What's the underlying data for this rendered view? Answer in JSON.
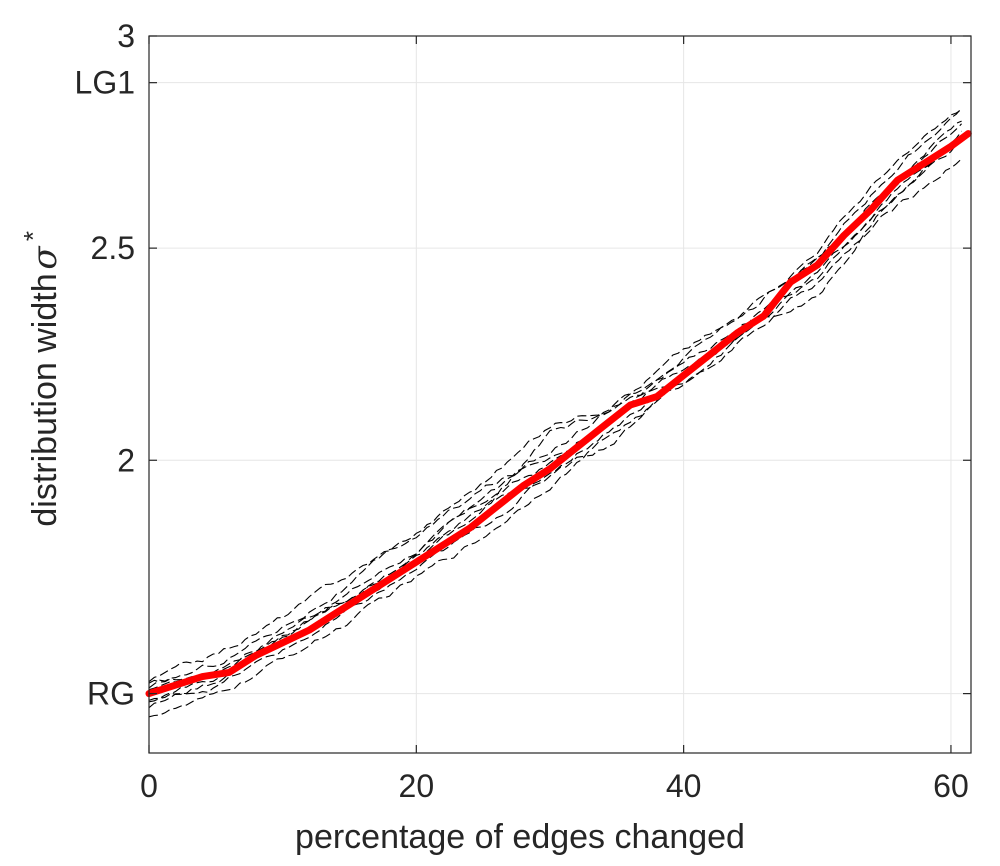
{
  "chart_data": {
    "type": "line",
    "title": "",
    "xlabel": "percentage of edges changed",
    "ylabel": "distribution width",
    "ylabel_symbol": "σ",
    "ylabel_superscript": "*",
    "xlim": [
      0,
      61.5
    ],
    "ylim": [
      1.31,
      3.0
    ],
    "x_ticks": [
      {
        "value": 0,
        "label": "0"
      },
      {
        "value": 20,
        "label": "20"
      },
      {
        "value": 40,
        "label": "40"
      },
      {
        "value": 60,
        "label": "60"
      }
    ],
    "y_ticks": [
      {
        "value": 1.45,
        "label": "RG"
      },
      {
        "value": 2.0,
        "label": "2"
      },
      {
        "value": 2.5,
        "label": "2.5"
      },
      {
        "value": 2.89,
        "label": "LG1"
      },
      {
        "value": 3.0,
        "label": "3"
      }
    ],
    "grid": true,
    "colors": {
      "mean_line": "#ff0000",
      "runs": "#000000",
      "grid": "#e6e6e6",
      "axes": "#262626"
    },
    "mean_series": {
      "name": "",
      "x": [
        0,
        2,
        4,
        6,
        8,
        10,
        12,
        14,
        16,
        18,
        20,
        22,
        24,
        26,
        28,
        30,
        32,
        34,
        36,
        38,
        40,
        42,
        44,
        46,
        48,
        50,
        52,
        54,
        56,
        58,
        60,
        61.3
      ],
      "values": [
        1.45,
        1.47,
        1.49,
        1.5,
        1.54,
        1.57,
        1.6,
        1.64,
        1.68,
        1.72,
        1.76,
        1.8,
        1.84,
        1.89,
        1.94,
        1.98,
        2.03,
        2.08,
        2.13,
        2.15,
        2.2,
        2.25,
        2.3,
        2.34,
        2.42,
        2.46,
        2.53,
        2.59,
        2.66,
        2.7,
        2.74,
        2.77
      ]
    },
    "runs": [
      {
        "x": [
          0,
          5,
          10,
          15,
          20,
          25,
          30,
          35,
          40,
          45,
          50,
          55,
          61
        ],
        "values": [
          1.47,
          1.5,
          1.6,
          1.69,
          1.79,
          1.9,
          1.99,
          2.1,
          2.22,
          2.33,
          2.48,
          2.63,
          2.79
        ]
      },
      {
        "x": [
          0,
          5,
          10,
          15,
          20,
          25,
          30,
          35,
          40,
          45,
          50,
          55,
          61
        ],
        "values": [
          1.4,
          1.44,
          1.53,
          1.62,
          1.72,
          1.82,
          1.95,
          2.07,
          2.18,
          2.3,
          2.42,
          2.57,
          2.72
        ]
      },
      {
        "x": [
          0,
          5,
          10,
          15,
          20,
          25,
          30,
          35,
          40,
          45,
          50,
          55,
          61
        ],
        "values": [
          1.48,
          1.54,
          1.63,
          1.73,
          1.83,
          1.95,
          2.08,
          2.14,
          2.26,
          2.35,
          2.5,
          2.68,
          2.83
        ]
      },
      {
        "x": [
          0,
          5,
          10,
          15,
          20,
          25,
          30,
          35,
          40,
          45,
          50,
          55,
          61
        ],
        "values": [
          1.43,
          1.47,
          1.55,
          1.64,
          1.74,
          1.84,
          1.97,
          2.09,
          2.2,
          2.32,
          2.38,
          2.6,
          2.76
        ]
      },
      {
        "x": [
          0,
          5,
          10,
          15,
          20,
          25,
          30,
          35,
          40,
          45,
          50,
          55,
          61
        ],
        "values": [
          1.46,
          1.52,
          1.61,
          1.71,
          1.82,
          1.93,
          2.01,
          2.11,
          2.24,
          2.36,
          2.46,
          2.64,
          2.81
        ]
      },
      {
        "x": [
          0,
          5,
          10,
          15,
          20,
          25,
          30,
          35,
          40,
          45,
          50,
          55,
          61
        ],
        "values": [
          1.44,
          1.49,
          1.57,
          1.66,
          1.76,
          1.87,
          2.06,
          2.12,
          2.19,
          2.31,
          2.44,
          2.59,
          2.78
        ]
      },
      {
        "x": [
          0,
          5,
          10,
          15,
          20,
          25,
          30,
          35,
          40,
          45,
          50,
          55,
          61
        ],
        "values": [
          1.42,
          1.48,
          1.58,
          1.67,
          1.77,
          1.89,
          1.96,
          2.05,
          2.21,
          2.34,
          2.47,
          2.66,
          2.84
        ]
      },
      {
        "x": [
          0,
          5,
          10,
          15,
          20,
          25,
          30,
          35,
          40,
          45,
          50,
          55,
          61
        ],
        "values": [
          1.46,
          1.51,
          1.59,
          1.68,
          1.78,
          1.91,
          2.02,
          2.13,
          2.23,
          2.33,
          2.43,
          2.62,
          2.77
        ]
      }
    ]
  }
}
